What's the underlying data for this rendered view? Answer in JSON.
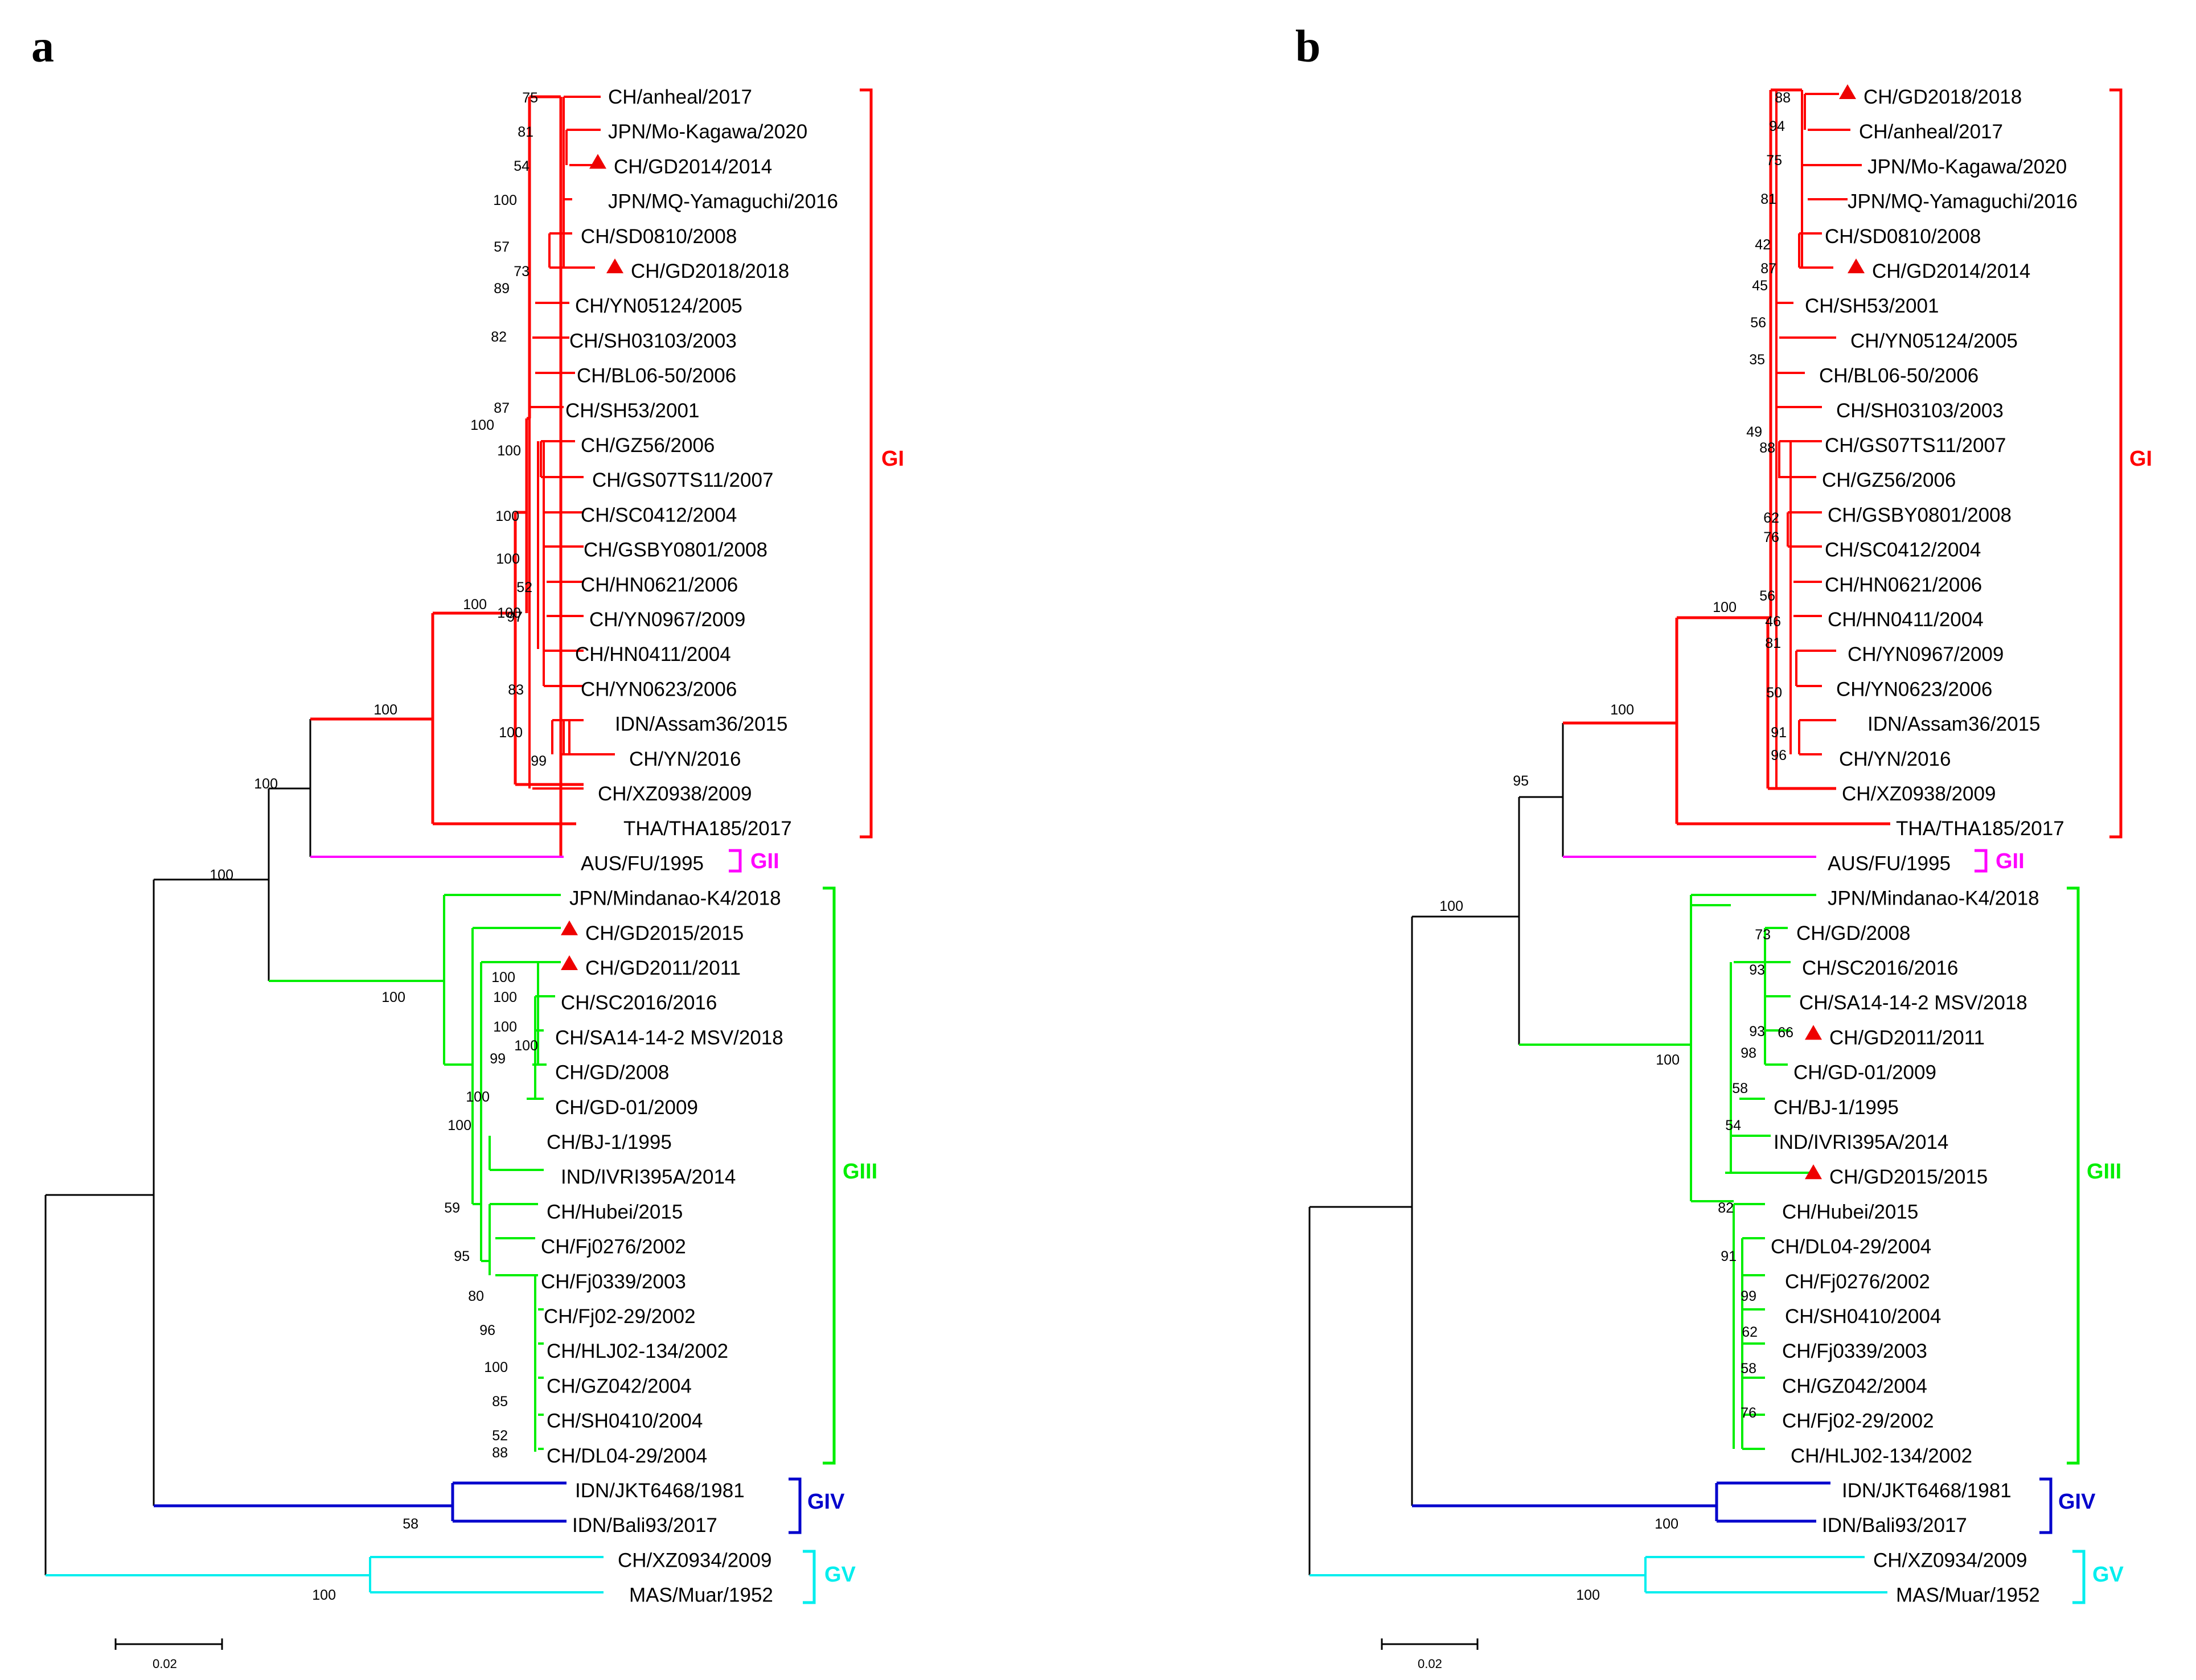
{
  "colors": {
    "GI": "#ff0000",
    "GII": "#ff00ff",
    "GIII": "#00ee00",
    "GIV": "#0000cc",
    "GV": "#00eeee",
    "root": "#000000",
    "marker": "#ee0000"
  },
  "panels": [
    {
      "label": "a",
      "scale_label": "0.02",
      "groups": [
        {
          "name": "GI",
          "color_key": "GI"
        },
        {
          "name": "GII",
          "color_key": "GII"
        },
        {
          "name": "GIII",
          "color_key": "GIII"
        },
        {
          "name": "GIV",
          "color_key": "GIV"
        },
        {
          "name": "GV",
          "color_key": "GV"
        }
      ],
      "taxa": [
        {
          "name": "CH/anheal/2017",
          "group": "GI",
          "marker": false
        },
        {
          "name": "JPN/Mo-Kagawa/2020",
          "group": "GI",
          "marker": false
        },
        {
          "name": "CH/GD2014/2014",
          "group": "GI",
          "marker": true
        },
        {
          "name": "JPN/MQ-Yamaguchi/2016",
          "group": "GI",
          "marker": false
        },
        {
          "name": "CH/SD0810/2008",
          "group": "GI",
          "marker": false
        },
        {
          "name": "CH/GD2018/2018",
          "group": "GI",
          "marker": true
        },
        {
          "name": "CH/YN05124/2005",
          "group": "GI",
          "marker": false
        },
        {
          "name": "CH/SH03103/2003",
          "group": "GI",
          "marker": false
        },
        {
          "name": "CH/BL06-50/2006",
          "group": "GI",
          "marker": false
        },
        {
          "name": "CH/SH53/2001",
          "group": "GI",
          "marker": false
        },
        {
          "name": "CH/GZ56/2006",
          "group": "GI",
          "marker": false
        },
        {
          "name": "CH/GS07TS11/2007",
          "group": "GI",
          "marker": false
        },
        {
          "name": "CH/SC0412/2004",
          "group": "GI",
          "marker": false
        },
        {
          "name": "CH/GSBY0801/2008",
          "group": "GI",
          "marker": false
        },
        {
          "name": "CH/HN0621/2006",
          "group": "GI",
          "marker": false
        },
        {
          "name": "CH/YN0967/2009",
          "group": "GI",
          "marker": false
        },
        {
          "name": "CH/HN0411/2004",
          "group": "GI",
          "marker": false
        },
        {
          "name": "CH/YN0623/2006",
          "group": "GI",
          "marker": false
        },
        {
          "name": "IDN/Assam36/2015",
          "group": "GI",
          "marker": false
        },
        {
          "name": "CH/YN/2016",
          "group": "GI",
          "marker": false
        },
        {
          "name": "CH/XZ0938/2009",
          "group": "GI",
          "marker": false
        },
        {
          "name": "THA/THA185/2017",
          "group": "GI",
          "marker": false
        },
        {
          "name": "AUS/FU/1995",
          "group": "GII",
          "marker": false
        },
        {
          "name": "JPN/Mindanao-K4/2018",
          "group": "GIII",
          "marker": false
        },
        {
          "name": "CH/GD2015/2015",
          "group": "GIII",
          "marker": true
        },
        {
          "name": "CH/GD2011/2011",
          "group": "GIII",
          "marker": true
        },
        {
          "name": "CH/SC2016/2016",
          "group": "GIII",
          "marker": false
        },
        {
          "name": "CH/SA14-14-2 MSV/2018",
          "group": "GIII",
          "marker": false
        },
        {
          "name": "CH/GD/2008",
          "group": "GIII",
          "marker": false
        },
        {
          "name": "CH/GD-01/2009",
          "group": "GIII",
          "marker": false
        },
        {
          "name": "CH/BJ-1/1995",
          "group": "GIII",
          "marker": false
        },
        {
          "name": "IND/IVRI395A/2014",
          "group": "GIII",
          "marker": false
        },
        {
          "name": "CH/Hubei/2015",
          "group": "GIII",
          "marker": false
        },
        {
          "name": "CH/Fj0276/2002",
          "group": "GIII",
          "marker": false
        },
        {
          "name": "CH/Fj0339/2003",
          "group": "GIII",
          "marker": false
        },
        {
          "name": "CH/Fj02-29/2002",
          "group": "GIII",
          "marker": false
        },
        {
          "name": "CH/HLJ02-134/2002",
          "group": "GIII",
          "marker": false
        },
        {
          "name": "CH/GZ042/2004",
          "group": "GIII",
          "marker": false
        },
        {
          "name": "CH/SH0410/2004",
          "group": "GIII",
          "marker": false
        },
        {
          "name": "CH/DL04-29/2004",
          "group": "GIII",
          "marker": false
        },
        {
          "name": "IDN/JKT6468/1981",
          "group": "GIV",
          "marker": false
        },
        {
          "name": "IDN/Bali93/2017",
          "group": "GIV",
          "marker": false
        },
        {
          "name": "CH/XZ0934/2009",
          "group": "GV",
          "marker": false
        },
        {
          "name": "MAS/Muar/1952",
          "group": "GV",
          "marker": false
        }
      ],
      "bootstrap": [
        "75",
        "81",
        "54",
        "100",
        "57",
        "73",
        "89",
        "82",
        "87",
        "100",
        "100",
        "100",
        "100",
        "52",
        "100",
        "97",
        "100",
        "100",
        "83",
        "100",
        "99",
        "100",
        "100",
        "100",
        "100",
        "100",
        "100",
        "99",
        "100",
        "100",
        "59",
        "95",
        "80",
        "96",
        "100",
        "85",
        "52",
        "88",
        "58",
        "100",
        "100"
      ]
    },
    {
      "label": "b",
      "scale_label": "0.02",
      "groups": [
        {
          "name": "GI",
          "color_key": "GI"
        },
        {
          "name": "GII",
          "color_key": "GII"
        },
        {
          "name": "GIII",
          "color_key": "GIII"
        },
        {
          "name": "GIV",
          "color_key": "GIV"
        },
        {
          "name": "GV",
          "color_key": "GV"
        }
      ],
      "taxa": [
        {
          "name": "CH/GD2018/2018",
          "group": "GI",
          "marker": true
        },
        {
          "name": "CH/anheal/2017",
          "group": "GI",
          "marker": false
        },
        {
          "name": "JPN/Mo-Kagawa/2020",
          "group": "GI",
          "marker": false
        },
        {
          "name": "JPN/MQ-Yamaguchi/2016",
          "group": "GI",
          "marker": false
        },
        {
          "name": "CH/SD0810/2008",
          "group": "GI",
          "marker": false
        },
        {
          "name": "CH/GD2014/2014",
          "group": "GI",
          "marker": true
        },
        {
          "name": "CH/SH53/2001",
          "group": "GI",
          "marker": false
        },
        {
          "name": "CH/YN05124/2005",
          "group": "GI",
          "marker": false
        },
        {
          "name": "CH/BL06-50/2006",
          "group": "GI",
          "marker": false
        },
        {
          "name": "CH/SH03103/2003",
          "group": "GI",
          "marker": false
        },
        {
          "name": "CH/GS07TS11/2007",
          "group": "GI",
          "marker": false
        },
        {
          "name": "CH/GZ56/2006",
          "group": "GI",
          "marker": false
        },
        {
          "name": "CH/GSBY0801/2008",
          "group": "GI",
          "marker": false
        },
        {
          "name": "CH/SC0412/2004",
          "group": "GI",
          "marker": false
        },
        {
          "name": "CH/HN0621/2006",
          "group": "GI",
          "marker": false
        },
        {
          "name": "CH/HN0411/2004",
          "group": "GI",
          "marker": false
        },
        {
          "name": "CH/YN0967/2009",
          "group": "GI",
          "marker": false
        },
        {
          "name": "CH/YN0623/2006",
          "group": "GI",
          "marker": false
        },
        {
          "name": "IDN/Assam36/2015",
          "group": "GI",
          "marker": false
        },
        {
          "name": "CH/YN/2016",
          "group": "GI",
          "marker": false
        },
        {
          "name": "CH/XZ0938/2009",
          "group": "GI",
          "marker": false
        },
        {
          "name": "THA/THA185/2017",
          "group": "GI",
          "marker": false
        },
        {
          "name": "AUS/FU/1995",
          "group": "GII",
          "marker": false
        },
        {
          "name": "JPN/Mindanao-K4/2018",
          "group": "GIII",
          "marker": false
        },
        {
          "name": "CH/GD/2008",
          "group": "GIII",
          "marker": false
        },
        {
          "name": "CH/SC2016/2016",
          "group": "GIII",
          "marker": false
        },
        {
          "name": "CH/SA14-14-2 MSV/2018",
          "group": "GIII",
          "marker": false
        },
        {
          "name": "CH/GD2011/2011",
          "group": "GIII",
          "marker": true
        },
        {
          "name": "CH/GD-01/2009",
          "group": "GIII",
          "marker": false
        },
        {
          "name": "CH/BJ-1/1995",
          "group": "GIII",
          "marker": false
        },
        {
          "name": "IND/IVRI395A/2014",
          "group": "GIII",
          "marker": false
        },
        {
          "name": "CH/GD2015/2015",
          "group": "GIII",
          "marker": true
        },
        {
          "name": "CH/Hubei/2015",
          "group": "GIII",
          "marker": false
        },
        {
          "name": "CH/DL04-29/2004",
          "group": "GIII",
          "marker": false
        },
        {
          "name": "CH/Fj0276/2002",
          "group": "GIII",
          "marker": false
        },
        {
          "name": "CH/SH0410/2004",
          "group": "GIII",
          "marker": false
        },
        {
          "name": "CH/Fj0339/2003",
          "group": "GIII",
          "marker": false
        },
        {
          "name": "CH/GZ042/2004",
          "group": "GIII",
          "marker": false
        },
        {
          "name": "CH/Fj02-29/2002",
          "group": "GIII",
          "marker": false
        },
        {
          "name": "CH/HLJ02-134/2002",
          "group": "GIII",
          "marker": false
        },
        {
          "name": "IDN/JKT6468/1981",
          "group": "GIV",
          "marker": false
        },
        {
          "name": "IDN/Bali93/2017",
          "group": "GIV",
          "marker": false
        },
        {
          "name": "CH/XZ0934/2009",
          "group": "GV",
          "marker": false
        },
        {
          "name": "MAS/Muar/1952",
          "group": "GV",
          "marker": false
        }
      ],
      "bootstrap": [
        "88",
        "94",
        "75",
        "81",
        "42",
        "87",
        "45",
        "56",
        "35",
        "49",
        "88",
        "62",
        "76",
        "56",
        "46",
        "81",
        "50",
        "91",
        "96",
        "100",
        "100",
        "95",
        "100",
        "73",
        "93",
        "93",
        "66",
        "98",
        "58",
        "54",
        "82",
        "91",
        "99",
        "62",
        "58",
        "76",
        "100",
        "100",
        "100"
      ]
    }
  ]
}
